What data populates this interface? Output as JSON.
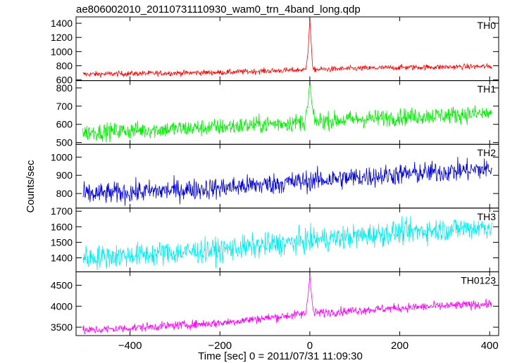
{
  "chart_data": {
    "type": "line",
    "title": "ae806002010_20110731110930_wam0_trn_4band_long.qdp",
    "xlabel": "Time [sec] 0 = 2011/07/31 11:09:30",
    "ylabel": "Counts/sec",
    "xlim": [
      -520,
      420
    ],
    "xticks": [
      -400,
      -200,
      0,
      200,
      400
    ],
    "x_step": 1,
    "panels": [
      {
        "name": "TH0",
        "color": "#ff0000",
        "ylim": [
          590,
          1490
        ],
        "yticks": [
          600,
          800,
          1000,
          1200,
          1400
        ],
        "baseline": [
          [
            -500,
            680
          ],
          [
            -200,
            705
          ],
          [
            0,
            745
          ],
          [
            200,
            775
          ],
          [
            400,
            790
          ]
        ],
        "noise": 28,
        "burst": [
          [
            -8,
            800
          ],
          [
            -4,
            1000
          ],
          [
            0,
            1450
          ],
          [
            3,
            1150
          ],
          [
            6,
            780
          ]
        ]
      },
      {
        "name": "TH1",
        "color": "#00ee00",
        "ylim": [
          490,
          840
        ],
        "yticks": [
          500,
          600,
          700,
          800
        ],
        "baseline": [
          [
            -500,
            555
          ],
          [
            -200,
            585
          ],
          [
            0,
            615
          ],
          [
            200,
            640
          ],
          [
            400,
            660
          ]
        ],
        "noise": 34,
        "burst": [
          [
            -10,
            640
          ],
          [
            -4,
            700
          ],
          [
            0,
            830
          ],
          [
            4,
            720
          ],
          [
            8,
            650
          ]
        ]
      },
      {
        "name": "TH2",
        "color": "#0000dd",
        "ylim": [
          720,
          1070
        ],
        "yticks": [
          800,
          900,
          1000
        ],
        "baseline": [
          [
            -500,
            795
          ],
          [
            -200,
            830
          ],
          [
            0,
            870
          ],
          [
            200,
            905
          ],
          [
            400,
            935
          ]
        ],
        "noise": 42
      },
      {
        "name": "TH3",
        "color": "#00eeee",
        "ylim": [
          1310,
          1720
        ],
        "yticks": [
          1400,
          1500,
          1600,
          1700
        ],
        "baseline": [
          [
            -500,
            1400
          ],
          [
            -200,
            1450
          ],
          [
            0,
            1510
          ],
          [
            200,
            1565
          ],
          [
            400,
            1600
          ]
        ],
        "noise": 55
      },
      {
        "name": "TH0123",
        "color": "#ff00ff",
        "ylim": [
          3300,
          4820
        ],
        "yticks": [
          3500,
          4000,
          4500
        ],
        "baseline": [
          [
            -500,
            3420
          ],
          [
            -200,
            3600
          ],
          [
            0,
            3830
          ],
          [
            200,
            3960
          ],
          [
            400,
            4050
          ]
        ],
        "noise": 75,
        "burst": [
          [
            -8,
            3900
          ],
          [
            -4,
            4250
          ],
          [
            0,
            4780
          ],
          [
            3,
            4300
          ],
          [
            7,
            3950
          ]
        ]
      }
    ]
  }
}
